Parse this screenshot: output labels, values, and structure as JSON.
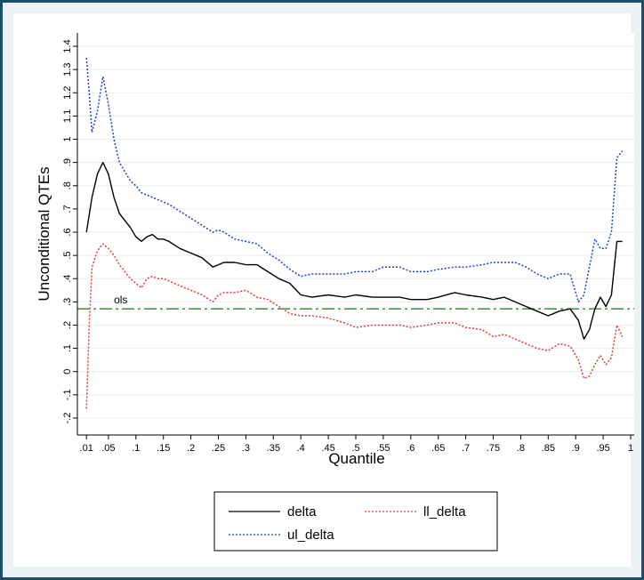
{
  "chart_data": {
    "type": "line",
    "xlabel": "Quantile",
    "ylabel": "Unconditional QTEs",
    "xlim": [
      0,
      1
    ],
    "ylim": [
      -0.25,
      1.45
    ],
    "x_ticks": [
      ".01",
      ".05",
      ".1",
      ".15",
      ".2",
      ".25",
      ".3",
      ".35",
      ".4",
      ".45",
      ".5",
      ".55",
      ".6",
      ".65",
      ".7",
      ".75",
      ".8",
      ".85",
      ".9",
      ".95",
      "1"
    ],
    "x_tick_values": [
      0.01,
      0.05,
      0.1,
      0.15,
      0.2,
      0.25,
      0.3,
      0.35,
      0.4,
      0.45,
      0.5,
      0.55,
      0.6,
      0.65,
      0.7,
      0.75,
      0.8,
      0.85,
      0.9,
      0.95,
      1.0
    ],
    "y_ticks": [
      "-.2",
      "-.1",
      "0",
      ".1",
      ".2",
      ".3",
      ".4",
      ".5",
      ".6",
      ".7",
      ".8",
      ".9",
      "1",
      "1.1",
      "1.2",
      "1.3",
      "1.4"
    ],
    "y_tick_values": [
      -0.2,
      -0.1,
      0,
      0.1,
      0.2,
      0.3,
      0.4,
      0.5,
      0.6,
      0.7,
      0.8,
      0.9,
      1.0,
      1.1,
      1.2,
      1.3,
      1.4
    ],
    "grid": "horizontal",
    "legend_position": "bottom",
    "reference_line": {
      "label": "ols",
      "y": 0.27,
      "color": "#2e7d32"
    },
    "series": [
      {
        "name": "delta",
        "color": "#000000",
        "style": "solid",
        "x": [
          0.01,
          0.02,
          0.03,
          0.04,
          0.05,
          0.06,
          0.07,
          0.08,
          0.09,
          0.1,
          0.11,
          0.12,
          0.13,
          0.14,
          0.15,
          0.16,
          0.18,
          0.2,
          0.22,
          0.24,
          0.25,
          0.26,
          0.28,
          0.3,
          0.32,
          0.34,
          0.36,
          0.38,
          0.4,
          0.42,
          0.45,
          0.48,
          0.5,
          0.53,
          0.55,
          0.58,
          0.6,
          0.63,
          0.65,
          0.68,
          0.7,
          0.73,
          0.75,
          0.77,
          0.79,
          0.81,
          0.83,
          0.85,
          0.87,
          0.89,
          0.905,
          0.915,
          0.925,
          0.935,
          0.945,
          0.955,
          0.965,
          0.975,
          0.985
        ],
        "values": [
          0.6,
          0.75,
          0.85,
          0.9,
          0.85,
          0.75,
          0.68,
          0.65,
          0.62,
          0.58,
          0.56,
          0.58,
          0.59,
          0.57,
          0.57,
          0.56,
          0.53,
          0.51,
          0.49,
          0.45,
          0.46,
          0.47,
          0.47,
          0.46,
          0.46,
          0.43,
          0.4,
          0.38,
          0.33,
          0.32,
          0.33,
          0.32,
          0.33,
          0.32,
          0.32,
          0.32,
          0.31,
          0.31,
          0.32,
          0.34,
          0.33,
          0.32,
          0.31,
          0.32,
          0.3,
          0.28,
          0.26,
          0.24,
          0.26,
          0.27,
          0.22,
          0.14,
          0.18,
          0.27,
          0.32,
          0.28,
          0.33,
          0.56,
          0.56
        ]
      },
      {
        "name": "ll_delta",
        "color": "#e53935",
        "style": "dotted",
        "x": [
          0.01,
          0.015,
          0.02,
          0.03,
          0.04,
          0.05,
          0.06,
          0.07,
          0.08,
          0.09,
          0.1,
          0.11,
          0.12,
          0.13,
          0.14,
          0.15,
          0.16,
          0.18,
          0.2,
          0.22,
          0.24,
          0.25,
          0.26,
          0.28,
          0.3,
          0.32,
          0.34,
          0.36,
          0.38,
          0.4,
          0.42,
          0.45,
          0.48,
          0.5,
          0.53,
          0.55,
          0.58,
          0.6,
          0.63,
          0.65,
          0.68,
          0.7,
          0.73,
          0.75,
          0.77,
          0.79,
          0.81,
          0.83,
          0.85,
          0.87,
          0.89,
          0.905,
          0.915,
          0.925,
          0.935,
          0.945,
          0.955,
          0.965,
          0.975,
          0.985
        ],
        "values": [
          -0.16,
          0.2,
          0.45,
          0.52,
          0.55,
          0.53,
          0.5,
          0.46,
          0.43,
          0.4,
          0.38,
          0.36,
          0.4,
          0.41,
          0.4,
          0.4,
          0.39,
          0.37,
          0.35,
          0.33,
          0.3,
          0.33,
          0.34,
          0.34,
          0.35,
          0.32,
          0.31,
          0.28,
          0.25,
          0.24,
          0.24,
          0.23,
          0.21,
          0.19,
          0.2,
          0.2,
          0.2,
          0.19,
          0.2,
          0.21,
          0.21,
          0.19,
          0.18,
          0.15,
          0.16,
          0.14,
          0.12,
          0.1,
          0.09,
          0.12,
          0.11,
          0.05,
          -0.03,
          -0.02,
          0.03,
          0.07,
          0.03,
          0.06,
          0.2,
          0.15
        ]
      },
      {
        "name": "ul_delta",
        "color": "#1e3fd8",
        "style": "dotted",
        "x": [
          0.01,
          0.015,
          0.02,
          0.03,
          0.04,
          0.05,
          0.06,
          0.07,
          0.08,
          0.09,
          0.1,
          0.11,
          0.12,
          0.13,
          0.14,
          0.15,
          0.16,
          0.18,
          0.2,
          0.22,
          0.24,
          0.25,
          0.26,
          0.28,
          0.3,
          0.32,
          0.34,
          0.36,
          0.38,
          0.4,
          0.42,
          0.45,
          0.48,
          0.5,
          0.53,
          0.55,
          0.58,
          0.6,
          0.63,
          0.65,
          0.68,
          0.7,
          0.73,
          0.75,
          0.77,
          0.79,
          0.81,
          0.83,
          0.85,
          0.87,
          0.89,
          0.905,
          0.915,
          0.925,
          0.935,
          0.945,
          0.955,
          0.965,
          0.975,
          0.985
        ],
        "values": [
          1.35,
          1.2,
          1.03,
          1.12,
          1.27,
          1.15,
          1.0,
          0.9,
          0.86,
          0.82,
          0.8,
          0.77,
          0.76,
          0.75,
          0.74,
          0.73,
          0.72,
          0.69,
          0.66,
          0.63,
          0.6,
          0.61,
          0.6,
          0.57,
          0.56,
          0.55,
          0.51,
          0.48,
          0.44,
          0.41,
          0.42,
          0.42,
          0.42,
          0.43,
          0.43,
          0.45,
          0.45,
          0.43,
          0.43,
          0.44,
          0.45,
          0.45,
          0.46,
          0.47,
          0.47,
          0.47,
          0.45,
          0.42,
          0.4,
          0.42,
          0.42,
          0.3,
          0.33,
          0.45,
          0.57,
          0.53,
          0.53,
          0.6,
          0.92,
          0.95
        ]
      }
    ]
  }
}
